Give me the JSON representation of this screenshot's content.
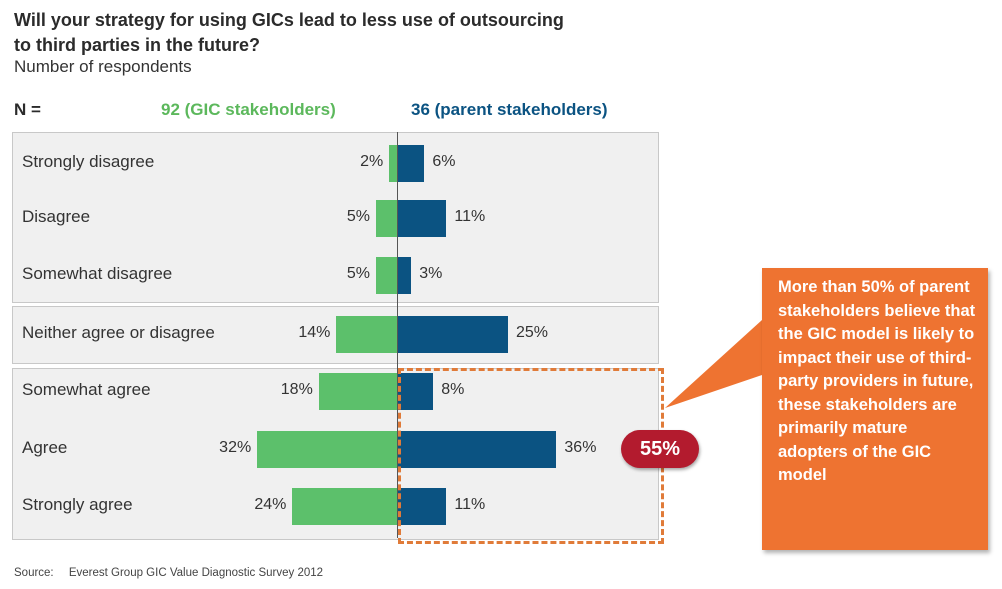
{
  "title": "Will your strategy for using GICs lead to less use of outsourcing to third parties in the future?",
  "subtitle": "Number of respondents",
  "n_label": "N =",
  "green_header": "92 (GIC stakeholders)",
  "blue_header": "36 (parent stakeholders)",
  "colors": {
    "green": "#5cc06b",
    "blue": "#0b5382",
    "callout": "#ee7331",
    "badge": "#b31b2e"
  },
  "chart_data": {
    "type": "bar",
    "orientation": "horizontal-diverging",
    "categories": [
      "Strongly disagree",
      "Disagree",
      "Somewhat disagree",
      "Neither agree or disagree",
      "Somewhat agree",
      "Agree",
      "Strongly agree"
    ],
    "series": [
      {
        "name": "92 (GIC stakeholders)",
        "values": [
          2,
          5,
          5,
          14,
          18,
          32,
          24
        ],
        "labels": [
          "2%",
          "5%",
          "5%",
          "14%",
          "18%",
          "32%",
          "24%"
        ]
      },
      {
        "name": "36 (parent stakeholders)",
        "values": [
          6,
          11,
          3,
          25,
          8,
          36,
          11
        ],
        "labels": [
          "6%",
          "11%",
          "3%",
          "25%",
          "8%",
          "36%",
          "11%"
        ]
      }
    ],
    "unit": "%"
  },
  "highlight_value": "55%",
  "callout": "More than 50% of parent stakeholders believe that the GIC model is likely to impact their use of third-party providers in future, these stakeholders are primarily mature adopters of the GIC model",
  "source_label": "Source:",
  "source_text": "Everest Group GIC Value Diagnostic Survey 2012"
}
